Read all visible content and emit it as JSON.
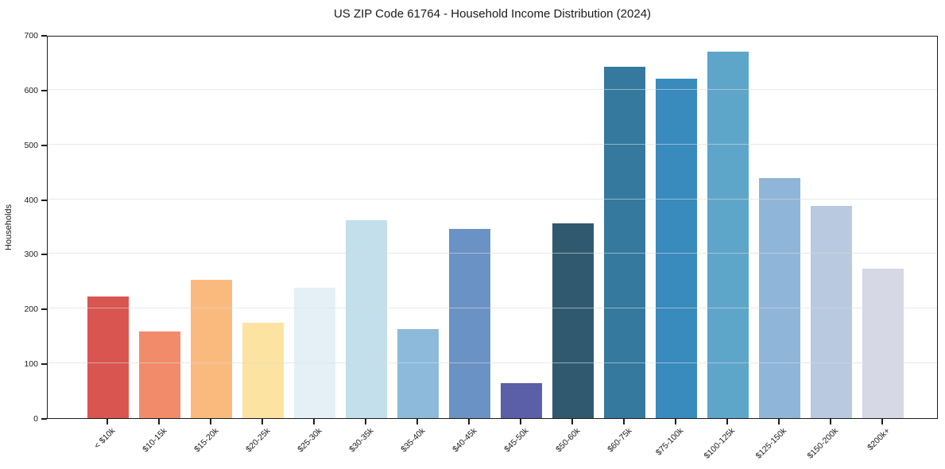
{
  "chart_data": {
    "type": "bar",
    "title": "US ZIP Code 61764 - Household Income Distribution (2024)",
    "xlabel": "",
    "ylabel": "Households",
    "categories": [
      "< $10k",
      "$10-15k",
      "$15-20k",
      "$20-25k",
      "$25-30k",
      "$30-35k",
      "$35-40k",
      "$40-45k",
      "$45-50k",
      "$50-60k",
      "$60-75k",
      "$75-100k",
      "$100-125k",
      "$125-150k",
      "$150-200k",
      "$200k+"
    ],
    "values": [
      222,
      158,
      252,
      174,
      238,
      362,
      162,
      346,
      64,
      356,
      642,
      620,
      670,
      438,
      388,
      273
    ],
    "bar_colors": [
      "#d95550",
      "#f28b6a",
      "#fbba7d",
      "#fde3a1",
      "#e4f0f6",
      "#c2dfeb",
      "#8dbadb",
      "#6b92c5",
      "#5a5fa8",
      "#30596f",
      "#35799e",
      "#398abd",
      "#5ea5ca",
      "#8fb6d9",
      "#b8c9e0",
      "#d6d8e6"
    ],
    "ylim": [
      0,
      700
    ],
    "yticks": [
      0,
      100,
      200,
      300,
      400,
      500,
      600,
      700
    ],
    "grid": "horizontal-light",
    "legend": "none",
    "x_tick_rotation": 45,
    "plot_background": "#ffffff",
    "spine_color": "#1c1c1c"
  }
}
